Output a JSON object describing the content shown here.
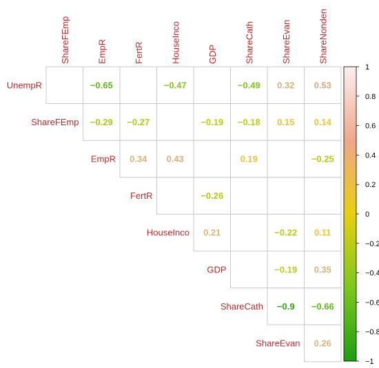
{
  "chart_data": {
    "type": "heatmap",
    "layout": "upper-triangle-correlation",
    "columns": [
      "ShareFEmp",
      "EmpR",
      "FertR",
      "HouseInco",
      "GDP",
      "ShareCath",
      "ShareEvan",
      "ShareNonden"
    ],
    "rows": [
      "UnempR",
      "ShareFEmp",
      "EmpR",
      "FertR",
      "HouseInco",
      "GDP",
      "ShareCath",
      "ShareEvan"
    ],
    "cells": [
      {
        "row": 0,
        "col": 1,
        "value": -0.65,
        "label": "−0.65"
      },
      {
        "row": 0,
        "col": 3,
        "value": -0.47,
        "label": "−0.47"
      },
      {
        "row": 0,
        "col": 5,
        "value": -0.49,
        "label": "−0.49"
      },
      {
        "row": 0,
        "col": 6,
        "value": 0.32,
        "label": "0.32"
      },
      {
        "row": 0,
        "col": 7,
        "value": 0.53,
        "label": "0.53"
      },
      {
        "row": 1,
        "col": 1,
        "value": -0.29,
        "label": "−0.29"
      },
      {
        "row": 1,
        "col": 2,
        "value": -0.27,
        "label": "−0.27"
      },
      {
        "row": 1,
        "col": 4,
        "value": -0.19,
        "label": "−0.19"
      },
      {
        "row": 1,
        "col": 5,
        "value": -0.18,
        "label": "−0.18"
      },
      {
        "row": 1,
        "col": 6,
        "value": 0.15,
        "label": "0.15"
      },
      {
        "row": 1,
        "col": 7,
        "value": 0.14,
        "label": "0.14"
      },
      {
        "row": 2,
        "col": 2,
        "value": 0.34,
        "label": "0.34"
      },
      {
        "row": 2,
        "col": 3,
        "value": 0.43,
        "label": "0.43"
      },
      {
        "row": 2,
        "col": 5,
        "value": 0.19,
        "label": "0.19"
      },
      {
        "row": 2,
        "col": 7,
        "value": -0.25,
        "label": "−0.25"
      },
      {
        "row": 3,
        "col": 4,
        "value": -0.26,
        "label": "−0.26"
      },
      {
        "row": 4,
        "col": 4,
        "value": 0.21,
        "label": "0.21"
      },
      {
        "row": 4,
        "col": 6,
        "value": -0.22,
        "label": "−0.22"
      },
      {
        "row": 4,
        "col": 7,
        "value": 0.11,
        "label": "0.11"
      },
      {
        "row": 5,
        "col": 6,
        "value": -0.19,
        "label": "−0.19"
      },
      {
        "row": 5,
        "col": 7,
        "value": 0.35,
        "label": "0.35"
      },
      {
        "row": 6,
        "col": 6,
        "value": -0.9,
        "label": "−0.9"
      },
      {
        "row": 6,
        "col": 7,
        "value": -0.66,
        "label": "−0.66"
      },
      {
        "row": 7,
        "col": 7,
        "value": 0.26,
        "label": "0.26"
      }
    ],
    "colorbar": {
      "range": [
        -1,
        1
      ],
      "ticks": [
        1,
        0.8,
        0.6,
        0.4,
        0.2,
        0,
        -0.2,
        -0.4,
        -0.6,
        -0.8,
        -1
      ],
      "tick_labels": [
        "1",
        "0.8",
        "0.6",
        "0.4",
        "0.2",
        "0",
        "−0.2",
        "−0.4",
        "−0.6",
        "−0.8",
        "−1"
      ],
      "colors": [
        {
          "value": -1,
          "color": "#1e9e12"
        },
        {
          "value": -0.5,
          "color": "#7dc81c"
        },
        {
          "value": 0,
          "color": "#e8cf12"
        },
        {
          "value": 0.5,
          "color": "#efa78c"
        },
        {
          "value": 1,
          "color": "#fbf0f0"
        }
      ]
    },
    "label_color": "#c0282b",
    "grid_color": "#c8c8c8"
  }
}
